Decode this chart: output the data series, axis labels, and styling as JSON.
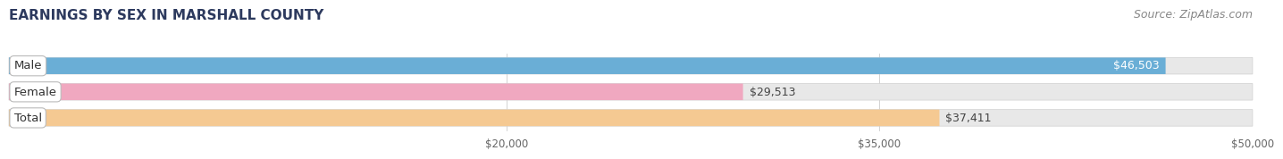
{
  "title": "EARNINGS BY SEX IN MARSHALL COUNTY",
  "source": "Source: ZipAtlas.com",
  "categories": [
    "Male",
    "Female",
    "Total"
  ],
  "values": [
    46503,
    29513,
    37411
  ],
  "bar_colors": [
    "#6aaed6",
    "#f0a8c0",
    "#f5c992"
  ],
  "bar_bg_color": "#e8e8e8",
  "xmin": 0,
  "xmax": 50000,
  "xticks": [
    20000,
    35000,
    50000
  ],
  "xtick_labels": [
    "$20,000",
    "$35,000",
    "$50,000"
  ],
  "value_labels": [
    "$46,503",
    "$29,513",
    "$37,411"
  ],
  "title_color": "#2d3a5e",
  "title_fontsize": 11,
  "source_fontsize": 9,
  "bar_label_fontsize": 9,
  "category_fontsize": 9.5,
  "background_color": "#ffffff",
  "bar_height": 0.62,
  "bar_gap": 0.38
}
